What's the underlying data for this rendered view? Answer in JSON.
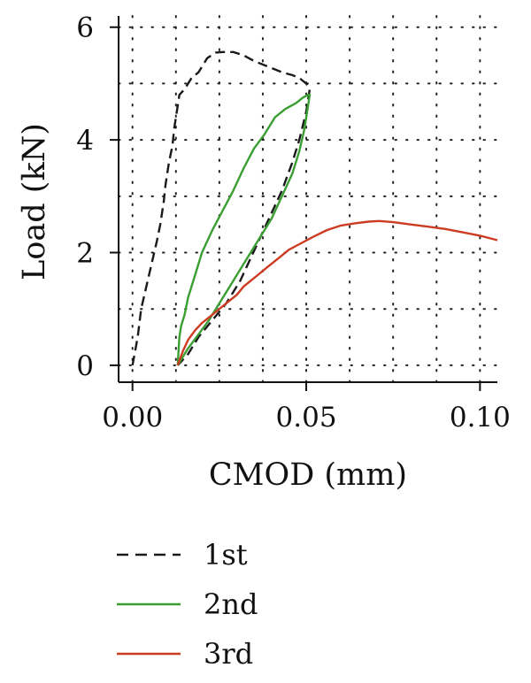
{
  "chart_data": {
    "type": "line",
    "title": "",
    "xlabel": "CMOD (mm)",
    "ylabel": "Load (kN)",
    "xlim": [
      -0.004,
      0.105
    ],
    "ylim": [
      -0.3,
      6.2
    ],
    "xticks": [
      0.0,
      0.05,
      0.1
    ],
    "xtick_labels": [
      "0.00",
      "0.05",
      "0.10"
    ],
    "yticks": [
      0,
      2,
      4,
      6
    ],
    "ytick_labels": [
      "0",
      "2",
      "4",
      "6"
    ],
    "grid": "dotted",
    "legend_position": "bottom",
    "series": [
      {
        "name": "1st",
        "color": "#1a1a1a",
        "dash": "dashed",
        "x": [
          0.0,
          0.0015,
          0.0025,
          0.004,
          0.0055,
          0.007,
          0.008,
          0.009,
          0.0095,
          0.0105,
          0.0115,
          0.012,
          0.0125,
          0.0135,
          0.015,
          0.017,
          0.019,
          0.0215,
          0.024,
          0.026,
          0.029,
          0.032,
          0.035,
          0.039,
          0.043,
          0.046,
          0.048,
          0.05,
          0.051,
          0.05,
          0.048,
          0.046,
          0.043,
          0.04,
          0.037,
          0.034,
          0.031,
          0.027,
          0.023,
          0.019,
          0.016,
          0.013
        ],
        "y": [
          0.0,
          0.5,
          1.0,
          1.4,
          1.8,
          2.2,
          2.5,
          2.9,
          3.2,
          3.6,
          3.9,
          4.2,
          4.4,
          4.8,
          4.9,
          5.1,
          5.2,
          5.45,
          5.55,
          5.56,
          5.56,
          5.5,
          5.4,
          5.3,
          5.2,
          5.15,
          5.1,
          5.0,
          4.9,
          4.5,
          4.0,
          3.6,
          3.1,
          2.7,
          2.3,
          1.9,
          1.5,
          1.1,
          0.8,
          0.5,
          0.2,
          0.0
        ]
      },
      {
        "name": "2nd",
        "color": "#3a9e33",
        "dash": "solid",
        "x": [
          0.013,
          0.0135,
          0.014,
          0.015,
          0.016,
          0.018,
          0.02,
          0.023,
          0.026,
          0.029,
          0.032,
          0.035,
          0.038,
          0.041,
          0.044,
          0.047,
          0.049,
          0.0505,
          0.051,
          0.0505,
          0.0495,
          0.048,
          0.046,
          0.043,
          0.04,
          0.037,
          0.034,
          0.031,
          0.028,
          0.025,
          0.022,
          0.019,
          0.016,
          0.014,
          0.013
        ],
        "y": [
          0.0,
          0.5,
          0.7,
          0.9,
          1.2,
          1.6,
          2.0,
          2.4,
          2.75,
          3.1,
          3.5,
          3.85,
          4.1,
          4.4,
          4.55,
          4.65,
          4.75,
          4.8,
          4.8,
          4.6,
          4.2,
          3.8,
          3.4,
          3.0,
          2.6,
          2.3,
          2.0,
          1.7,
          1.4,
          1.1,
          0.8,
          0.55,
          0.3,
          0.1,
          0.0
        ]
      },
      {
        "name": "3rd",
        "color": "#cc3b22",
        "dash": "solid",
        "x": [
          0.013,
          0.0145,
          0.016,
          0.018,
          0.02,
          0.022,
          0.024,
          0.026,
          0.028,
          0.03,
          0.032,
          0.034,
          0.036,
          0.038,
          0.04,
          0.042,
          0.045,
          0.048,
          0.052,
          0.056,
          0.06,
          0.064,
          0.068,
          0.071,
          0.075,
          0.08,
          0.085,
          0.09,
          0.095,
          0.1,
          0.105
        ],
        "y": [
          0.0,
          0.25,
          0.45,
          0.62,
          0.75,
          0.85,
          0.95,
          1.05,
          1.15,
          1.25,
          1.4,
          1.5,
          1.6,
          1.7,
          1.8,
          1.9,
          2.05,
          2.15,
          2.28,
          2.4,
          2.48,
          2.52,
          2.55,
          2.56,
          2.54,
          2.5,
          2.46,
          2.42,
          2.36,
          2.3,
          2.22
        ]
      }
    ]
  }
}
